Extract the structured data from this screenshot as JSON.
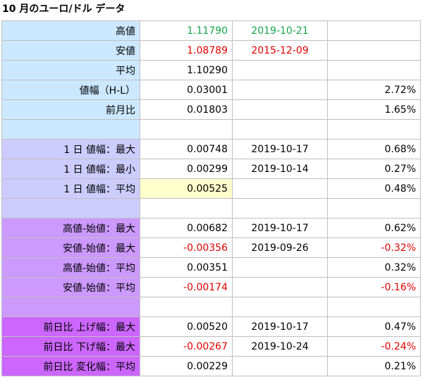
{
  "title": "10 月のユーロ/ドル データ",
  "colors": {
    "blue": "#cce8ff",
    "lavender": "#ccccff",
    "pink": "#cc99ff",
    "magenta": "#cc66ff",
    "highlight": "#ffffcc",
    "green": "#16a34a",
    "red": "#e00000"
  },
  "rows": [
    {
      "label": "高値",
      "value": "1.11790",
      "date": "2019-10-21",
      "pct": ""
    },
    {
      "label": "安値",
      "value": "1.08789",
      "date": "2015-12-09",
      "pct": ""
    },
    {
      "label": "平均",
      "value": "1.10290",
      "date": "",
      "pct": ""
    },
    {
      "label": "値幅（H-L）",
      "value": "0.03001",
      "date": "",
      "pct": "2.72%"
    },
    {
      "label": "前月比",
      "value": "0.01803",
      "date": "",
      "pct": "1.65%"
    },
    {
      "label": "",
      "value": "",
      "date": "",
      "pct": ""
    },
    {
      "label": "1 日 値幅：最大",
      "value": "0.00748",
      "date": "2019-10-17",
      "pct": "0.68%"
    },
    {
      "label": "1 日 値幅：最小",
      "value": "0.00299",
      "date": "2019-10-14",
      "pct": "0.27%"
    },
    {
      "label": "1 日 値幅：平均",
      "value": "0.00525",
      "date": "",
      "pct": "0.48%"
    },
    {
      "label": "",
      "value": "",
      "date": "",
      "pct": ""
    },
    {
      "label": "高値-始値：最大",
      "value": "0.00682",
      "date": "2019-10-17",
      "pct": "0.62%"
    },
    {
      "label": "安値-始値：最大",
      "value": "-0.00356",
      "date": "2019-09-26",
      "pct": "-0.32%"
    },
    {
      "label": "高値-始値：平均",
      "value": "0.00351",
      "date": "",
      "pct": "0.32%"
    },
    {
      "label": "安値-始値：平均",
      "value": "-0.00174",
      "date": "",
      "pct": "-0.16%"
    },
    {
      "label": "",
      "value": "",
      "date": "",
      "pct": ""
    },
    {
      "label": "前日比 上げ幅：最大",
      "value": "0.00520",
      "date": "2019-10-17",
      "pct": "0.47%"
    },
    {
      "label": "前日比 下げ幅：最大",
      "value": "-0.00267",
      "date": "2019-10-24",
      "pct": "-0.24%"
    },
    {
      "label": "前日比 変化幅：平均",
      "value": "0.00229",
      "date": "",
      "pct": "0.21%"
    }
  ]
}
